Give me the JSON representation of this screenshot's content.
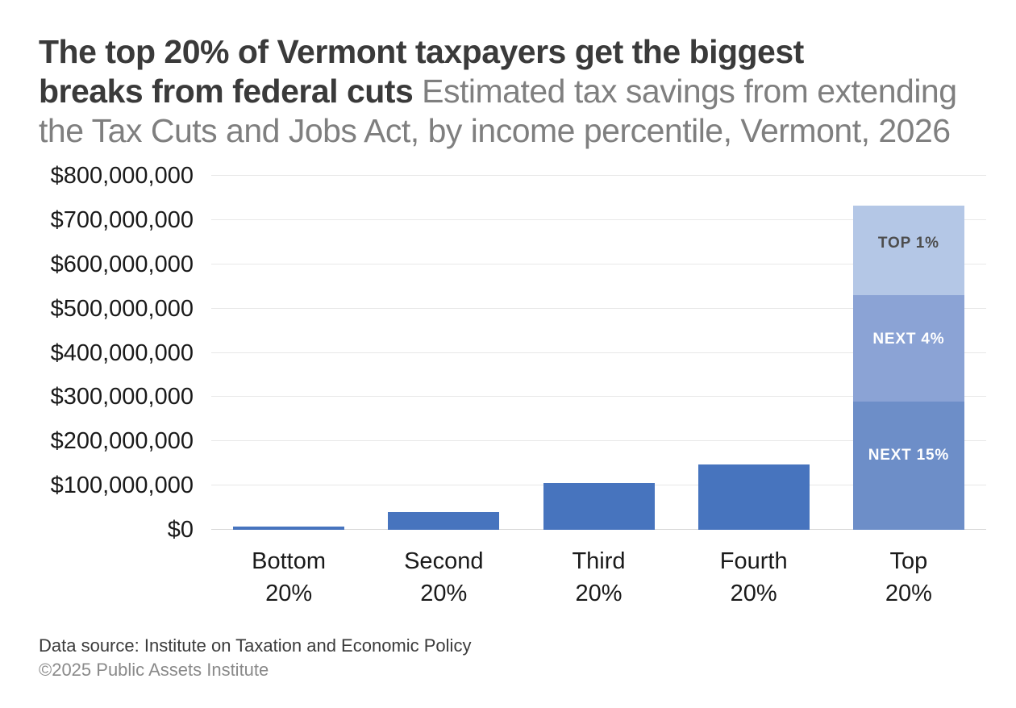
{
  "header": {
    "title_line1": "The top 20% of Vermont taxpayers get the biggest",
    "title_line2_bold": "breaks from federal cuts",
    "title_line2_gray": " Estimated tax savings from extending",
    "title_line3_gray": "the Tax Cuts and Jobs Act, by income percentile, Vermont, 2026"
  },
  "footer": {
    "source": "Data source: Institute on Taxation and Economic Policy",
    "copyright": "©2025 Public Assets Institute"
  },
  "chart_data": {
    "type": "bar",
    "stacked": true,
    "title": "The top 20% of Vermont taxpayers get the biggest breaks from federal cuts",
    "subtitle": "Estimated tax savings from extending the Tax Cuts and Jobs Act, by income percentile, Vermont, 2026",
    "xlabel": "",
    "ylabel": "",
    "ylim": [
      0,
      800000000
    ],
    "grid": true,
    "legend": "none",
    "y_axis": {
      "ticks": [
        {
          "value": 0,
          "label": "$0"
        },
        {
          "value": 100000000,
          "label": "$100,000,000"
        },
        {
          "value": 200000000,
          "label": "$200,000,000"
        },
        {
          "value": 300000000,
          "label": "$300,000,000"
        },
        {
          "value": 400000000,
          "label": "$400,000,000"
        },
        {
          "value": 500000000,
          "label": "$500,000,000"
        },
        {
          "value": 600000000,
          "label": "$600,000,000"
        },
        {
          "value": 700000000,
          "label": "$700,000,000"
        },
        {
          "value": 800000000,
          "label": "$800,000,000"
        }
      ]
    },
    "categories": [
      {
        "line1": "Bottom",
        "line2": "20%"
      },
      {
        "line1": "Second",
        "line2": "20%"
      },
      {
        "line1": "Third",
        "line2": "20%"
      },
      {
        "line1": "Fourth",
        "line2": "20%"
      },
      {
        "line1": "Top",
        "line2": "20%"
      }
    ],
    "bars": [
      {
        "category": "Bottom 20%",
        "segments": [
          {
            "label": "",
            "value": 8000000,
            "color": "#4774BE",
            "label_color": ""
          }
        ]
      },
      {
        "category": "Second 20%",
        "segments": [
          {
            "label": "",
            "value": 40000000,
            "color": "#4774BE",
            "label_color": ""
          }
        ]
      },
      {
        "category": "Third 20%",
        "segments": [
          {
            "label": "",
            "value": 105000000,
            "color": "#4774BE",
            "label_color": ""
          }
        ]
      },
      {
        "category": "Fourth 20%",
        "segments": [
          {
            "label": "",
            "value": 148000000,
            "color": "#4774BE",
            "label_color": ""
          }
        ]
      },
      {
        "category": "Top 20%",
        "segments": [
          {
            "label": "NEXT 15%",
            "value": 290000000,
            "color": "#6D8EC8",
            "label_color": "#FFFFFF"
          },
          {
            "label": "NEXT 4%",
            "value": 240000000,
            "color": "#8BA3D5",
            "label_color": "#FFFFFF"
          },
          {
            "label": "TOP 1%",
            "value": 202000000,
            "color": "#B4C7E6",
            "label_color": "#4D4D4D"
          }
        ]
      }
    ],
    "colors": {
      "bar_default": "#4774BE",
      "next_15": "#6D8EC8",
      "next_4": "#8BA3D5",
      "top_1": "#B4C7E6",
      "gridline": "#E8E8E8",
      "axis_line": "#D8D8D8",
      "title": "#3A3A3A",
      "subtitle": "#7F7F7F",
      "axis_text": "#1A1A1A"
    }
  }
}
